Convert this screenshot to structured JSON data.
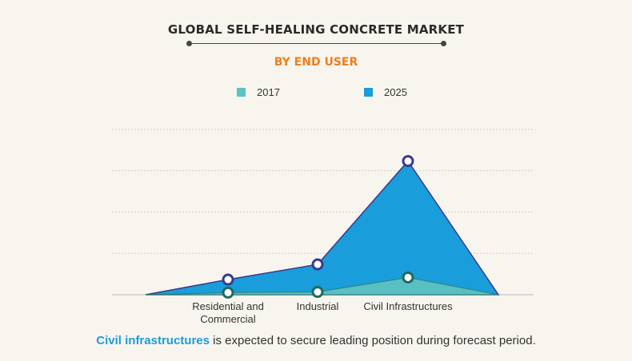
{
  "chart_data": {
    "type": "area",
    "title": "GLOBAL SELF-HEALING CONCRETE MARKET",
    "subtitle": "BY END USER",
    "categories": [
      "Residential and Commercial",
      "Industrial",
      "Civil Infrastructures"
    ],
    "series": [
      {
        "name": "2017",
        "values": [
          0.15,
          0.2,
          1.25
        ],
        "color": "#5cc2c2"
      },
      {
        "name": "2025",
        "values": [
          1.1,
          2.2,
          9.7
        ],
        "color": "#1a9ddb"
      }
    ],
    "ylim": [
      0,
      12
    ],
    "grid": true,
    "legend_position": "top-center",
    "marker_outline_colors": {
      "2017": "#1e6b5e",
      "2025": "#3b3a8c"
    }
  },
  "footnote": {
    "highlight": "Civil infrastructures",
    "rest": " is expected to secure leading position during forecast period."
  },
  "colors": {
    "subtitle": "#f07d1b",
    "highlight": "#1f9bd7",
    "background": "#f8f5ef"
  }
}
